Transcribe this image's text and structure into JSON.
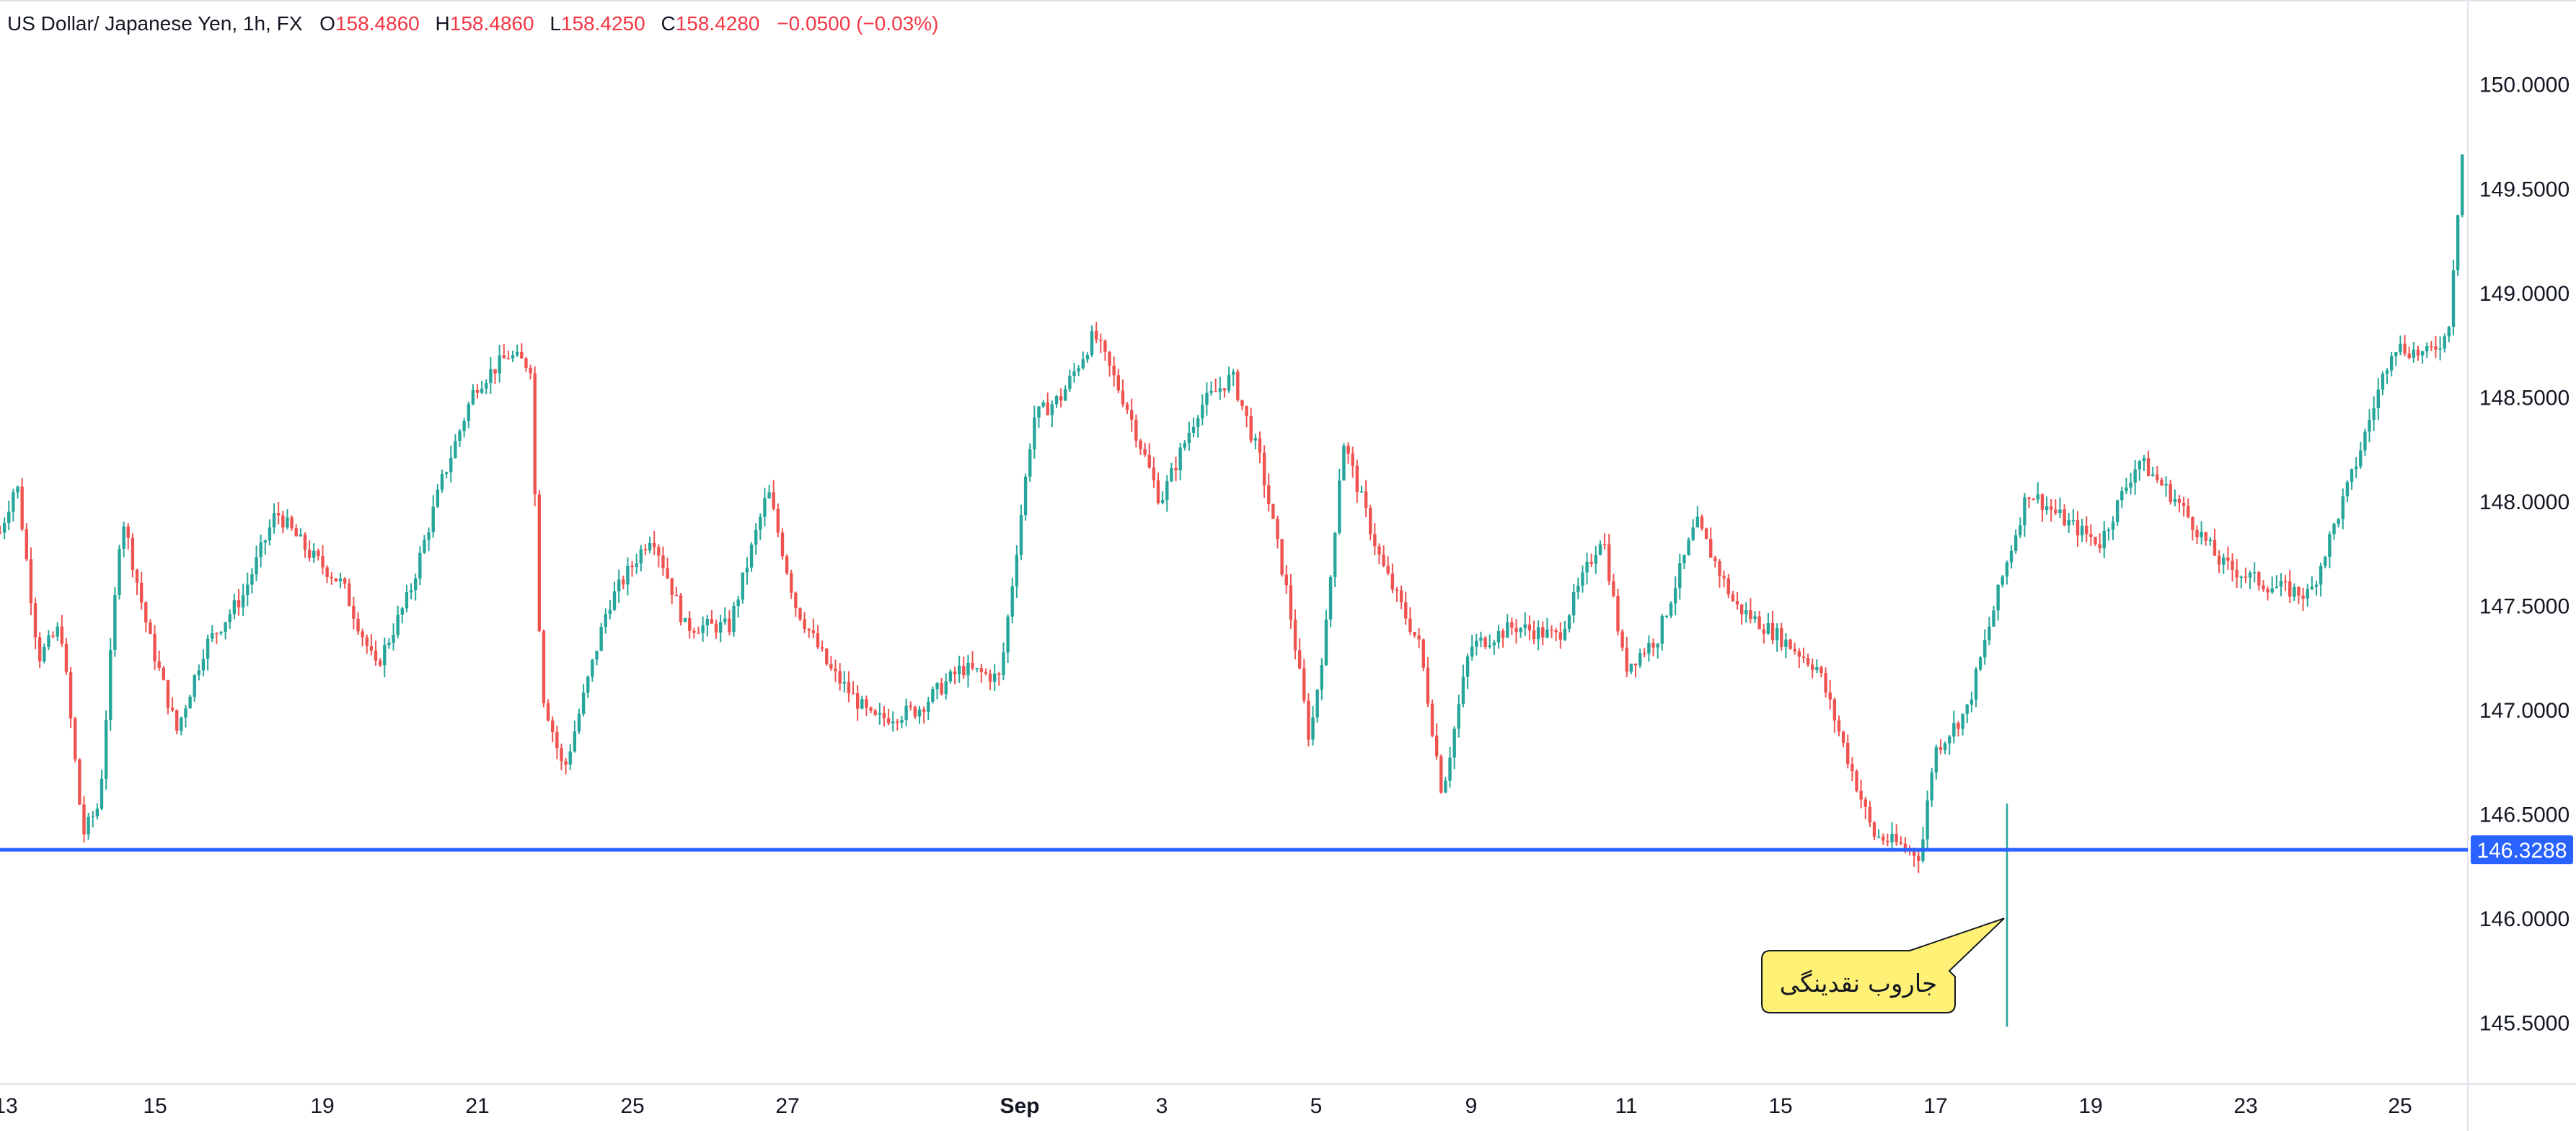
{
  "header": {
    "symbol": "US Dollar/ Japanese Yen, 1h, FX",
    "open_label": "O",
    "open": "158.4860",
    "high_label": "H",
    "high": "158.4860",
    "low_label": "L",
    "low": "158.4250",
    "close_label": "C",
    "close": "158.4280",
    "change": "−0.0500 (−0.03%)"
  },
  "colors": {
    "up": "#26a69a",
    "down": "#ef5350",
    "level_line": "#2962ff",
    "callout_fill": "#fff176",
    "header_value": "#f23645"
  },
  "chart_data": {
    "type": "candlestick",
    "symbol": "USD/JPY",
    "interval": "1h",
    "price_axis": {
      "ylim": [
        145.25,
        150.3
      ],
      "ticks": [
        "150.0000",
        "149.5000",
        "149.0000",
        "148.5000",
        "148.0000",
        "147.5000",
        "147.0000",
        "146.5000",
        "146.0000",
        "145.5000"
      ]
    },
    "time_axis": {
      "ticks": [
        "13",
        "15",
        "19",
        "21",
        "25",
        "27",
        "Sep",
        "3",
        "5",
        "9",
        "11",
        "15",
        "17",
        "19",
        "23",
        "25"
      ]
    },
    "close_path": [
      [
        0.0,
        147.85
      ],
      [
        0.15,
        148.1
      ],
      [
        0.35,
        147.25
      ],
      [
        0.55,
        147.4
      ],
      [
        0.75,
        146.4
      ],
      [
        0.9,
        146.55
      ],
      [
        1.1,
        147.95
      ],
      [
        1.35,
        147.35
      ],
      [
        1.6,
        146.9
      ],
      [
        1.85,
        147.3
      ],
      [
        2.2,
        147.55
      ],
      [
        2.5,
        147.95
      ],
      [
        2.8,
        147.75
      ],
      [
        3.1,
        147.6
      ],
      [
        3.4,
        147.2
      ],
      [
        3.7,
        147.55
      ],
      [
        4.0,
        148.1
      ],
      [
        4.3,
        148.55
      ],
      [
        4.6,
        148.7
      ],
      [
        4.8,
        148.65
      ],
      [
        4.9,
        147.1
      ],
      [
        5.1,
        146.7
      ],
      [
        5.5,
        147.5
      ],
      [
        5.9,
        147.85
      ],
      [
        6.2,
        147.4
      ],
      [
        6.6,
        147.4
      ],
      [
        6.95,
        148.05
      ],
      [
        7.2,
        147.5
      ],
      [
        7.5,
        147.2
      ],
      [
        7.9,
        146.95
      ],
      [
        8.3,
        147.0
      ],
      [
        8.7,
        147.2
      ],
      [
        9.05,
        147.15
      ],
      [
        9.35,
        148.4
      ],
      [
        9.6,
        148.5
      ],
      [
        9.9,
        148.8
      ],
      [
        10.2,
        148.45
      ],
      [
        10.5,
        148.0
      ],
      [
        10.85,
        148.45
      ],
      [
        11.15,
        148.6
      ],
      [
        11.4,
        148.2
      ],
      [
        11.65,
        147.55
      ],
      [
        11.85,
        146.85
      ],
      [
        12.0,
        147.4
      ],
      [
        12.15,
        148.3
      ],
      [
        12.5,
        147.7
      ],
      [
        12.85,
        147.3
      ],
      [
        13.05,
        146.6
      ],
      [
        13.3,
        147.3
      ],
      [
        13.7,
        147.4
      ],
      [
        14.1,
        147.35
      ],
      [
        14.5,
        147.85
      ],
      [
        14.7,
        147.2
      ],
      [
        15.0,
        147.35
      ],
      [
        15.35,
        147.9
      ],
      [
        15.7,
        147.5
      ],
      [
        16.1,
        147.35
      ],
      [
        16.45,
        147.2
      ],
      [
        16.7,
        146.8
      ],
      [
        16.95,
        146.4
      ],
      [
        17.2,
        146.35
      ],
      [
        17.38,
        146.3
      ],
      [
        17.5,
        146.8
      ],
      [
        17.8,
        147.0
      ],
      [
        18.1,
        147.6
      ],
      [
        18.35,
        148.05
      ],
      [
        18.7,
        147.9
      ],
      [
        19.0,
        147.8
      ],
      [
        19.35,
        148.2
      ],
      [
        19.7,
        148.0
      ],
      [
        20.1,
        147.7
      ],
      [
        20.5,
        147.6
      ],
      [
        20.9,
        147.55
      ],
      [
        21.3,
        148.15
      ],
      [
        21.65,
        148.75
      ],
      [
        21.95,
        148.7
      ],
      [
        22.15,
        148.8
      ],
      [
        22.3,
        149.8
      ]
    ],
    "annotations": [
      {
        "type": "horizontal_line",
        "price": 146.3288,
        "label": "146.3288"
      },
      {
        "type": "callout",
        "text": "جاروب نقدینگی",
        "price": 145.9
      }
    ],
    "grid": false
  }
}
